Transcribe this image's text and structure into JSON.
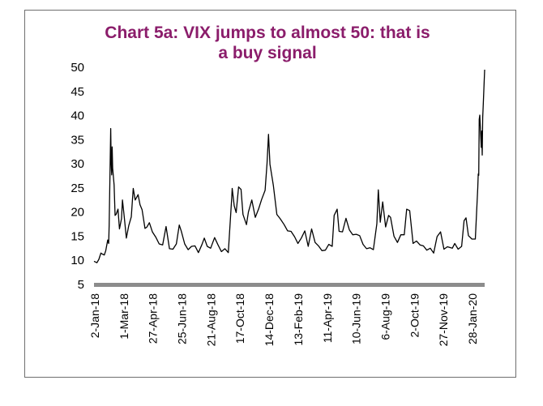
{
  "chart_data": {
    "type": "line",
    "title": "Chart 5a: VIX jumps to almost 50: that is\na buy signal",
    "xlabel": "",
    "ylabel": "",
    "ylim": [
      5,
      50
    ],
    "y_ticks": [
      5,
      10,
      15,
      20,
      25,
      30,
      35,
      40,
      45,
      50
    ],
    "x_ticks": [
      "2-Jan-18",
      "1-Mar-18",
      "27-Apr-18",
      "25-Jun-18",
      "21-Aug-18",
      "17-Oct-18",
      "14-Dec-18",
      "13-Feb-19",
      "11-Apr-19",
      "10-Jun-19",
      "6-Aug-19",
      "2-Oct-19",
      "27-Nov-19",
      "28-Jan-20"
    ],
    "grid": false,
    "legend": "none",
    "colors": {
      "title": "#8b1d6b",
      "line": "#000000",
      "baseline": "#8c8c8c"
    },
    "series": [
      {
        "x": [
          "2018-01-02",
          "2018-01-08",
          "2018-01-12",
          "2018-01-16",
          "2018-01-19",
          "2018-01-23",
          "2018-01-26",
          "2018-01-30",
          "2018-02-01",
          "2018-02-02",
          "2018-02-05",
          "2018-02-06",
          "2018-02-07",
          "2018-02-08",
          "2018-02-09",
          "2018-02-12",
          "2018-02-14",
          "2018-02-16",
          "2018-02-20",
          "2018-02-23",
          "2018-02-27",
          "2018-03-01",
          "2018-03-05",
          "2018-03-09",
          "2018-03-14",
          "2018-03-19",
          "2018-03-23",
          "2018-03-27",
          "2018-04-02",
          "2018-04-06",
          "2018-04-10",
          "2018-04-16",
          "2018-04-20",
          "2018-04-25",
          "2018-05-01",
          "2018-05-08",
          "2018-05-15",
          "2018-05-22",
          "2018-05-29",
          "2018-06-05",
          "2018-06-12",
          "2018-06-19",
          "2018-06-25",
          "2018-06-29",
          "2018-07-06",
          "2018-07-13",
          "2018-07-20",
          "2018-07-27",
          "2018-08-03",
          "2018-08-10",
          "2018-08-15",
          "2018-08-21",
          "2018-08-28",
          "2018-09-05",
          "2018-09-12",
          "2018-09-19",
          "2018-09-26",
          "2018-10-03",
          "2018-10-10",
          "2018-10-11",
          "2018-10-15",
          "2018-10-19",
          "2018-10-24",
          "2018-10-29",
          "2018-11-02",
          "2018-11-09",
          "2018-11-13",
          "2018-11-20",
          "2018-11-27",
          "2018-12-04",
          "2018-12-10",
          "2018-12-17",
          "2018-12-21",
          "2018-12-24",
          "2018-12-27",
          "2019-01-03",
          "2019-01-10",
          "2019-01-17",
          "2019-01-25",
          "2019-02-01",
          "2019-02-08",
          "2019-02-15",
          "2019-02-22",
          "2019-03-01",
          "2019-03-08",
          "2019-03-15",
          "2019-03-22",
          "2019-03-29",
          "2019-04-05",
          "2019-04-12",
          "2019-04-19",
          "2019-04-26",
          "2019-05-03",
          "2019-05-07",
          "2019-05-13",
          "2019-05-17",
          "2019-05-24",
          "2019-05-31",
          "2019-06-07",
          "2019-06-14",
          "2019-06-21",
          "2019-06-28",
          "2019-07-05",
          "2019-07-12",
          "2019-07-19",
          "2019-07-26",
          "2019-08-02",
          "2019-08-05",
          "2019-08-09",
          "2019-08-14",
          "2019-08-20",
          "2019-08-26",
          "2019-08-30",
          "2019-09-06",
          "2019-09-13",
          "2019-09-20",
          "2019-09-27",
          "2019-10-02",
          "2019-10-08",
          "2019-10-15",
          "2019-10-22",
          "2019-10-29",
          "2019-11-05",
          "2019-11-12",
          "2019-11-19",
          "2019-11-26",
          "2019-12-03",
          "2019-12-10",
          "2019-12-17",
          "2019-12-24",
          "2020-01-03",
          "2020-01-08",
          "2020-01-15",
          "2020-01-22",
          "2020-01-27",
          "2020-01-31",
          "2020-02-05",
          "2020-02-12",
          "2020-02-19",
          "2020-02-24",
          "2020-02-25",
          "2020-02-26",
          "2020-02-27",
          "2020-02-28",
          "2020-03-02",
          "2020-03-03",
          "2020-03-04",
          "2020-03-05",
          "2020-03-06",
          "2020-03-09"
        ],
        "values": [
          9.8,
          9.5,
          10.2,
          11.5,
          11.3,
          11.1,
          12.0,
          14.2,
          13.5,
          17.3,
          37.3,
          29.9,
          27.7,
          33.5,
          29.1,
          25.6,
          19.3,
          19.5,
          20.6,
          16.5,
          18.6,
          22.5,
          18.7,
          14.6,
          17.2,
          19.0,
          24.9,
          22.5,
          23.6,
          21.5,
          20.5,
          16.6,
          16.9,
          17.8,
          15.9,
          14.8,
          13.4,
          13.2,
          17.0,
          12.4,
          12.3,
          13.4,
          17.3,
          16.1,
          13.4,
          12.2,
          12.9,
          13.0,
          11.6,
          13.2,
          14.6,
          12.9,
          12.5,
          14.7,
          13.2,
          11.8,
          12.4,
          11.6,
          22.9,
          24.9,
          21.3,
          19.9,
          25.2,
          24.7,
          19.5,
          17.4,
          20.0,
          22.5,
          18.9,
          20.7,
          22.6,
          24.5,
          30.1,
          36.1,
          29.9,
          25.5,
          19.5,
          18.6,
          17.4,
          16.1,
          16.0,
          14.9,
          13.5,
          14.6,
          16.1,
          12.9,
          16.5,
          13.7,
          13.0,
          12.0,
          12.1,
          13.3,
          12.9,
          19.3,
          20.6,
          16.0,
          15.9,
          18.7,
          16.3,
          15.3,
          15.4,
          15.1,
          13.3,
          12.4,
          12.6,
          12.2,
          17.6,
          24.6,
          17.9,
          22.1,
          16.9,
          19.3,
          18.9,
          15.0,
          13.7,
          15.3,
          15.3,
          20.6,
          20.3,
          13.5,
          14.0,
          13.2,
          13.0,
          12.1,
          12.5,
          11.5,
          14.9,
          15.9,
          12.3,
          12.8,
          12.5,
          13.5,
          12.3,
          12.9,
          18.2,
          18.8,
          15.1,
          14.4,
          14.4,
          25.0,
          27.9,
          27.6,
          39.2,
          40.1,
          33.4,
          36.8,
          31.8,
          39.6,
          41.9,
          49.5
        ]
      }
    ]
  }
}
